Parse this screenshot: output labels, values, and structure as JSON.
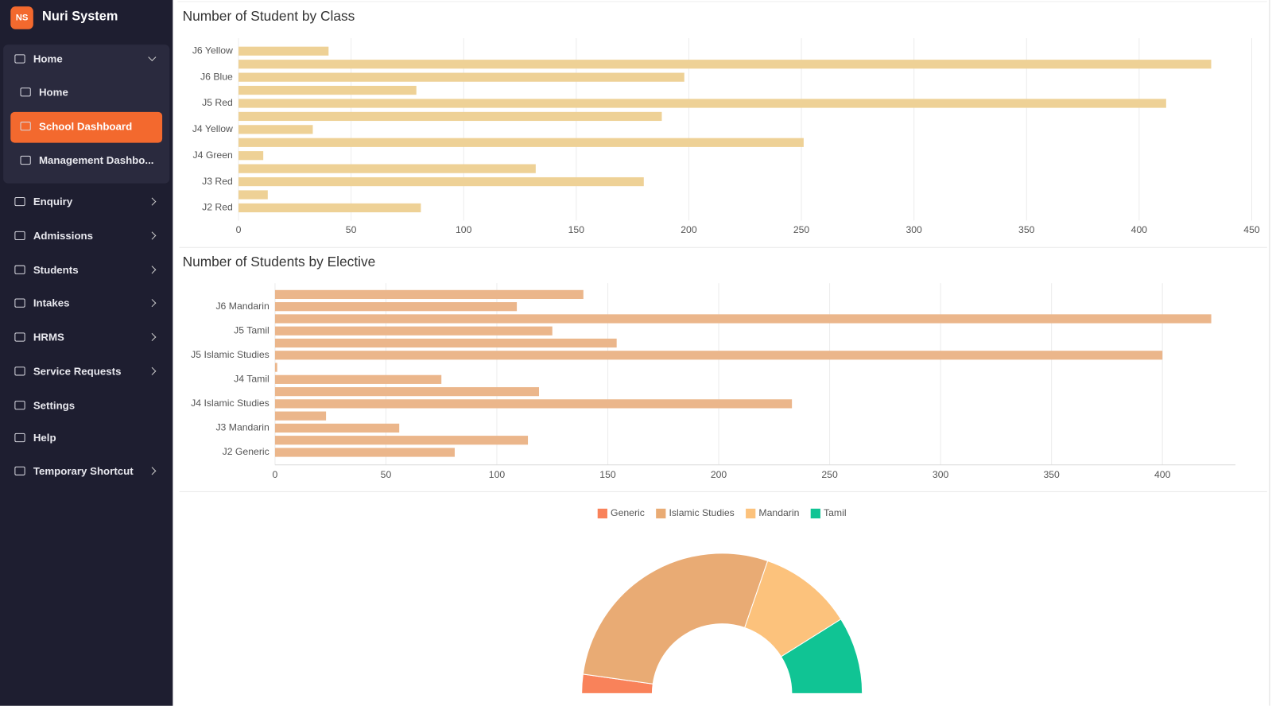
{
  "sidebar": {
    "logo": "NS",
    "brand": "Nuri System",
    "home": "Home",
    "submenu": [
      "Home",
      "School Dashboard",
      "Management Dashbo..."
    ],
    "menu": [
      {
        "label": "Enquiry",
        "submenu": true
      },
      {
        "label": "Admissions",
        "submenu": true
      },
      {
        "label": "Students",
        "submenu": true
      },
      {
        "label": "Intakes",
        "submenu": true
      },
      {
        "label": "HRMS",
        "submenu": true
      },
      {
        "label": "Service Requests",
        "submenu": true
      },
      {
        "label": "Settings",
        "submenu": false
      },
      {
        "label": "Help",
        "submenu": false
      },
      {
        "label": "Temporary Shortcut",
        "submenu": true
      }
    ]
  },
  "chart_data": [
    {
      "type": "bar",
      "orientation": "horizontal",
      "title": "Number of Student by Class",
      "categories": [
        "J6 Yellow",
        null,
        "J6 Blue",
        null,
        "J5 Red",
        null,
        "J4 Yellow",
        null,
        "J4 Green",
        null,
        "J3 Red",
        null,
        "J2 Red"
      ],
      "values": [
        40,
        432,
        198,
        79,
        412,
        188,
        33,
        251,
        11,
        132,
        180,
        13,
        81
      ],
      "color": "#eed196",
      "xlim": [
        0,
        450
      ],
      "xticks": [
        0,
        50,
        100,
        150,
        200,
        250,
        300,
        350,
        400,
        450
      ],
      "grid": true
    },
    {
      "type": "bar",
      "orientation": "horizontal",
      "title": "Number of Students by Elective",
      "categories": [
        null,
        "J6 Mandarin",
        null,
        "J5 Tamil",
        null,
        "J5 Islamic Studies",
        null,
        "J4 Tamil",
        null,
        "J4 Islamic Studies",
        null,
        "J3 Mandarin",
        null,
        "J2 Generic"
      ],
      "values": [
        139,
        109,
        422,
        125,
        154,
        400,
        1,
        75,
        119,
        233,
        23,
        56,
        114,
        81
      ],
      "color": "#ebb68b",
      "xlim": [
        0,
        430
      ],
      "xticks": [
        0,
        50,
        100,
        150,
        200,
        250,
        300,
        350,
        400
      ],
      "grid": true
    },
    {
      "type": "donut",
      "semicircle": true,
      "legend": "top",
      "categories": [
        "Generic",
        "Islamic Studies",
        "Mandarin",
        "Tamil"
      ],
      "values": [
        91,
        1151,
        444,
        365
      ],
      "colors": [
        "#f9825a",
        "#e9ab74",
        "#fcc27c",
        "#10c494"
      ]
    }
  ]
}
